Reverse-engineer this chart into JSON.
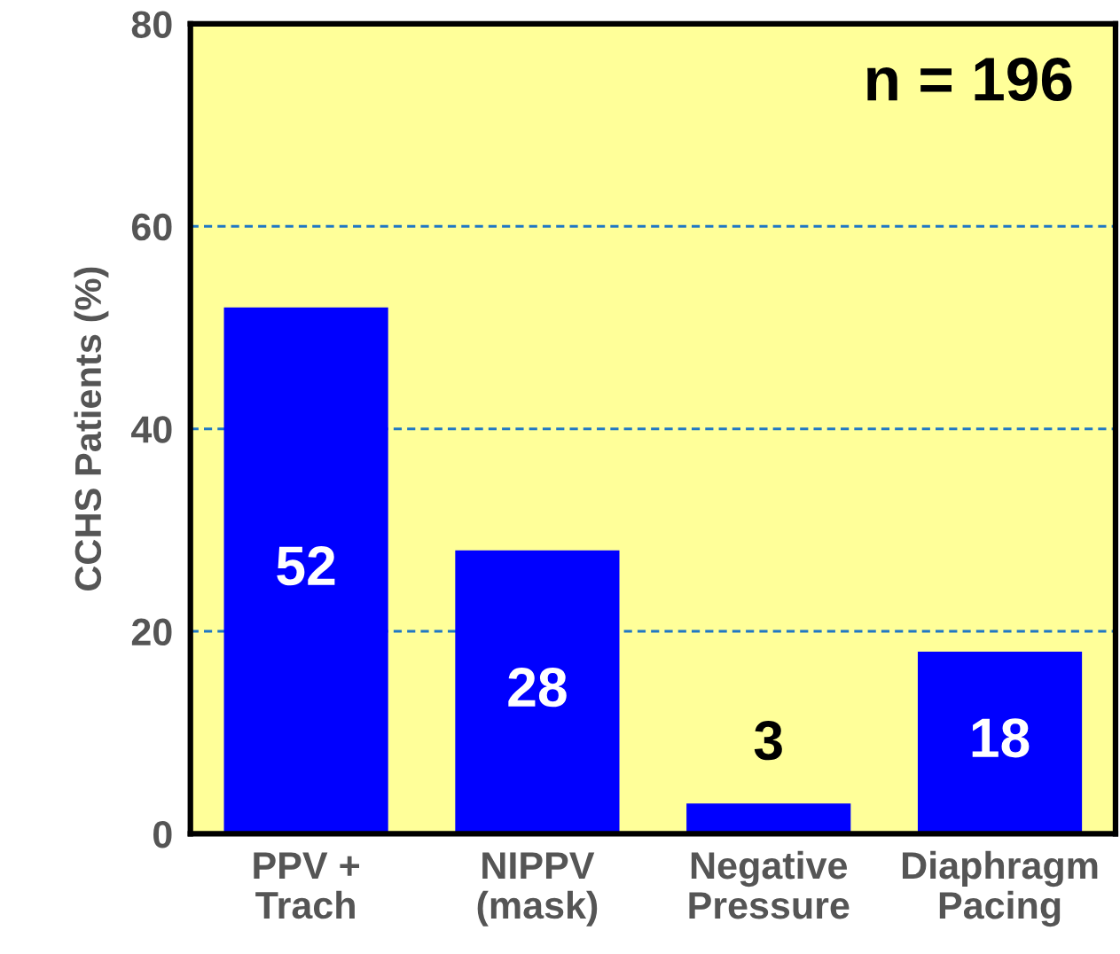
{
  "chart_data": {
    "type": "bar",
    "ylabel": "CCHS Patients (%)",
    "categories": [
      "PPV +\nTrach",
      "NIPPV\n(mask)",
      "Negative\nPressure",
      "Diaphragm\nPacing"
    ],
    "values": [
      52,
      28,
      3,
      18
    ],
    "color": "#0000ff",
    "ylim": [
      0,
      80
    ],
    "yticks": [
      0,
      20,
      40,
      60,
      80
    ],
    "grid": "y",
    "data_labels": true,
    "annotations": [
      "n = 196"
    ]
  }
}
